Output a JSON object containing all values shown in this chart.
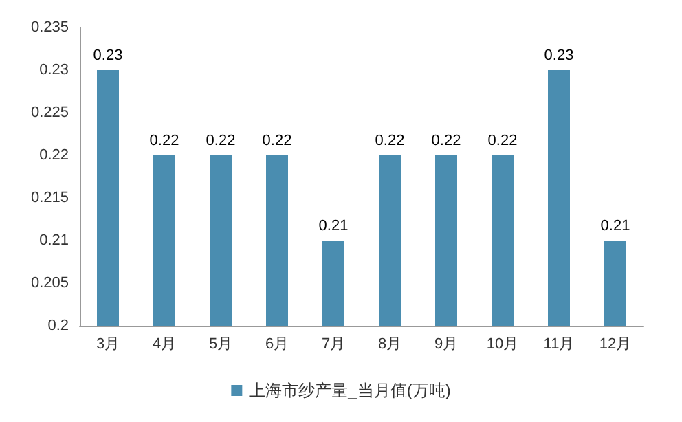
{
  "chart_data": {
    "type": "bar",
    "categories": [
      "3月",
      "4月",
      "5月",
      "6月",
      "7月",
      "8月",
      "9月",
      "10月",
      "11月",
      "12月"
    ],
    "series": [
      {
        "name": "上海市纱产量_当月值(万吨)",
        "color": "#4a8db0",
        "values": [
          0.23,
          0.22,
          0.22,
          0.22,
          0.21,
          0.22,
          0.22,
          0.22,
          0.23,
          0.21
        ]
      }
    ],
    "ylim": [
      0.2,
      0.235
    ],
    "yticks": [
      0.2,
      0.205,
      0.21,
      0.215,
      0.22,
      0.225,
      0.23,
      0.235
    ],
    "data_labels": true,
    "grid": false,
    "legend": "bottom"
  }
}
